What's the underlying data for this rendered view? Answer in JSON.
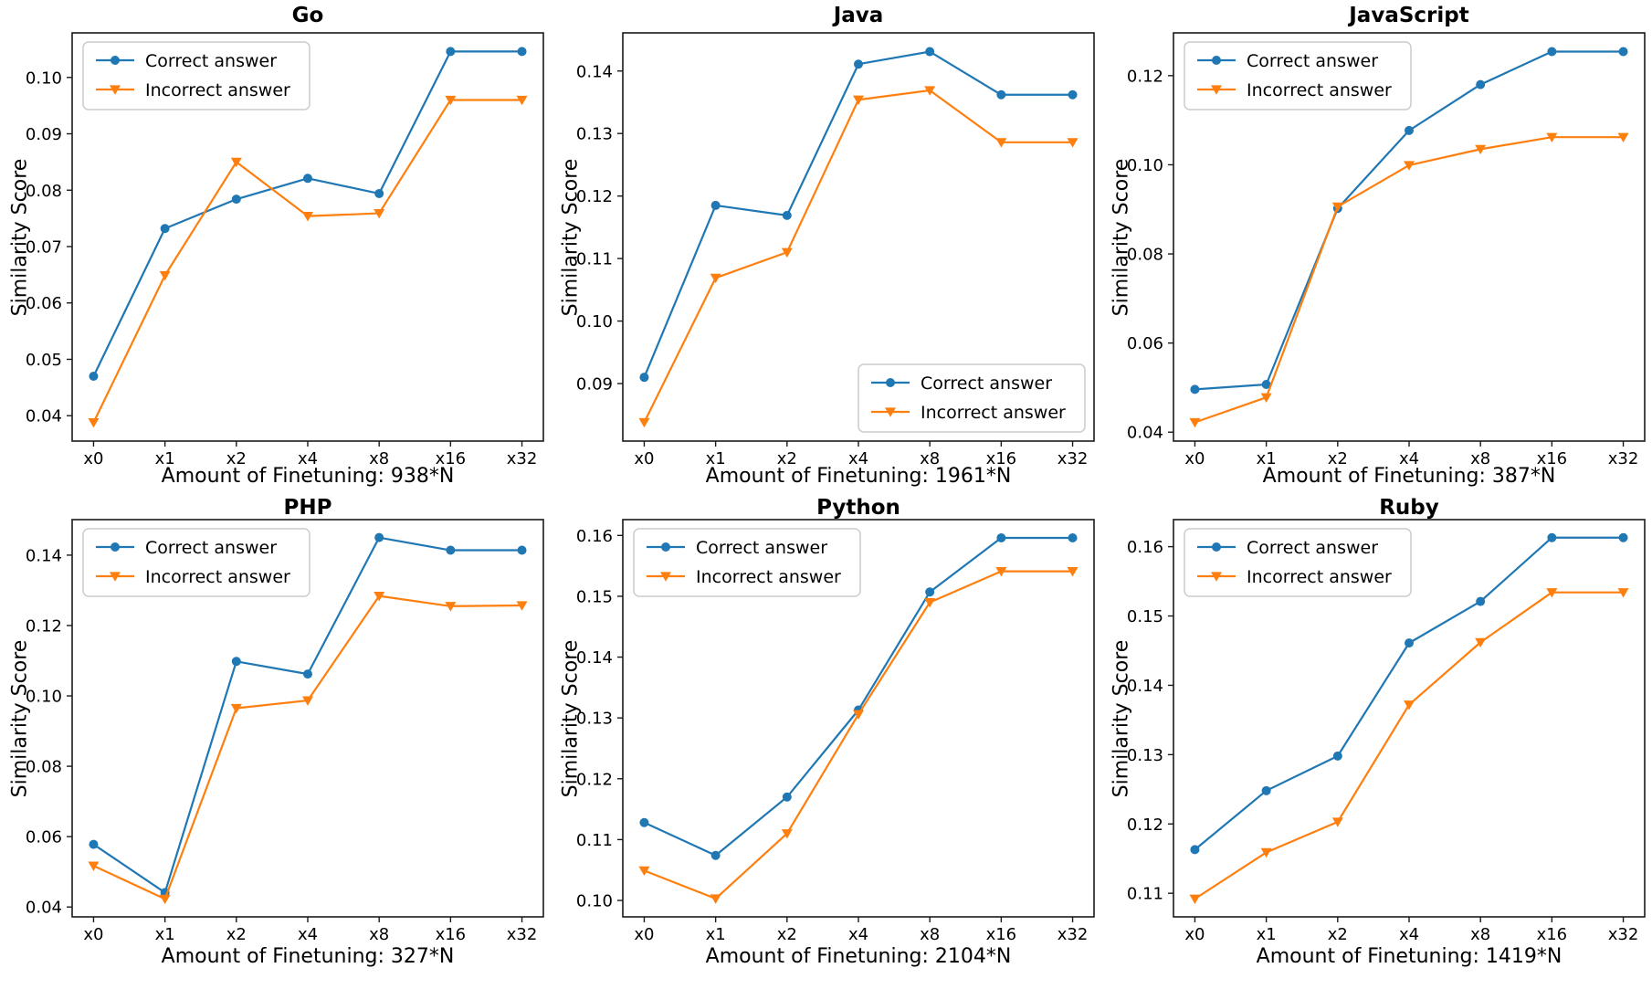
{
  "figure": {
    "background_color": "#ffffff",
    "text_color": "#000000",
    "axis_color": "#1a1a1a",
    "correct_color": "#1f77b4",
    "incorrect_color": "#ff7f0e",
    "legend_labels": [
      "Correct answer",
      "Incorrect answer"
    ]
  },
  "chart_data": [
    {
      "type": "line",
      "title": "Go",
      "xlabel": "Amount of Finetuning: 938*N",
      "ylabel": "Similarity Score",
      "x_categories": [
        "x0",
        "x1",
        "x2",
        "x4",
        "x8",
        "x16",
        "x32"
      ],
      "y_ticks": [
        0.04,
        0.05,
        0.06,
        0.07,
        0.08,
        0.09,
        0.1
      ],
      "ylim": [
        0.0355,
        0.1079
      ],
      "grid": false,
      "legend_position": "upper-left",
      "series": [
        {
          "name": "Correct answer",
          "marker": "circle",
          "color": "#1f77b4",
          "values": [
            0.047,
            0.0732,
            0.0784,
            0.0821,
            0.0794,
            0.1046,
            0.1046
          ]
        },
        {
          "name": "Incorrect answer",
          "marker": "triangle-down",
          "color": "#ff7f0e",
          "values": [
            0.0388,
            0.0649,
            0.085,
            0.0754,
            0.0759,
            0.096,
            0.096
          ]
        }
      ]
    },
    {
      "type": "line",
      "title": "Java",
      "xlabel": "Amount of Finetuning: 1961*N",
      "ylabel": "Similarity Score",
      "x_categories": [
        "x0",
        "x1",
        "x2",
        "x4",
        "x8",
        "x16",
        "x32"
      ],
      "y_ticks": [
        0.09,
        0.1,
        0.11,
        0.12,
        0.13,
        0.14
      ],
      "ylim": [
        0.0808,
        0.1461
      ],
      "grid": false,
      "legend_position": "lower-right",
      "series": [
        {
          "name": "Correct answer",
          "marker": "circle",
          "color": "#1f77b4",
          "values": [
            0.091,
            0.1185,
            0.1169,
            0.1411,
            0.1431,
            0.1362,
            0.1362
          ]
        },
        {
          "name": "Incorrect answer",
          "marker": "triangle-down",
          "color": "#ff7f0e",
          "values": [
            0.0838,
            0.1069,
            0.111,
            0.1354,
            0.1369,
            0.1286,
            0.1286
          ]
        }
      ]
    },
    {
      "type": "line",
      "title": "JavaScript",
      "xlabel": "Amount of Finetuning: 387*N",
      "ylabel": "Similarity Score",
      "x_categories": [
        "x0",
        "x1",
        "x2",
        "x4",
        "x8",
        "x16",
        "x32"
      ],
      "y_ticks": [
        0.04,
        0.06,
        0.08,
        0.1,
        0.12
      ],
      "ylim": [
        0.038,
        0.1296
      ],
      "grid": false,
      "legend_position": "upper-left",
      "series": [
        {
          "name": "Correct answer",
          "marker": "circle",
          "color": "#1f77b4",
          "values": [
            0.0496,
            0.0507,
            0.0902,
            0.1077,
            0.118,
            0.1254,
            0.1254
          ]
        },
        {
          "name": "Incorrect answer",
          "marker": "triangle-down",
          "color": "#ff7f0e",
          "values": [
            0.0422,
            0.0478,
            0.0906,
            0.0999,
            0.1035,
            0.1062,
            0.1062
          ]
        }
      ]
    },
    {
      "type": "line",
      "title": "PHP",
      "xlabel": "Amount of Finetuning: 327*N",
      "ylabel": "Similarity Score",
      "x_categories": [
        "x0",
        "x1",
        "x2",
        "x4",
        "x8",
        "x16",
        "x32"
      ],
      "y_ticks": [
        0.04,
        0.06,
        0.08,
        0.1,
        0.12,
        0.14
      ],
      "ylim": [
        0.0372,
        0.1501
      ],
      "grid": false,
      "legend_position": "upper-left",
      "series": [
        {
          "name": "Correct answer",
          "marker": "circle",
          "color": "#1f77b4",
          "values": [
            0.0578,
            0.0441,
            0.1098,
            0.1062,
            0.145,
            0.1414,
            0.1414
          ]
        },
        {
          "name": "Incorrect answer",
          "marker": "triangle-down",
          "color": "#ff7f0e",
          "values": [
            0.0517,
            0.0423,
            0.0965,
            0.0987,
            0.1284,
            0.1255,
            0.1257
          ]
        }
      ]
    },
    {
      "type": "line",
      "title": "Python",
      "xlabel": "Amount of Finetuning: 2104*N",
      "ylabel": "Similarity Score",
      "x_categories": [
        "x0",
        "x1",
        "x2",
        "x4",
        "x8",
        "x16",
        "x32"
      ],
      "y_ticks": [
        0.1,
        0.11,
        0.12,
        0.13,
        0.14,
        0.15,
        0.16
      ],
      "ylim": [
        0.0973,
        0.1626
      ],
      "grid": false,
      "legend_position": "upper-left",
      "series": [
        {
          "name": "Correct answer",
          "marker": "circle",
          "color": "#1f77b4",
          "values": [
            0.1128,
            0.1074,
            0.117,
            0.1313,
            0.1507,
            0.1596,
            0.1596
          ]
        },
        {
          "name": "Incorrect answer",
          "marker": "triangle-down",
          "color": "#ff7f0e",
          "values": [
            0.1049,
            0.1003,
            0.111,
            0.1306,
            0.149,
            0.1541,
            0.1541
          ]
        }
      ]
    },
    {
      "type": "line",
      "title": "Ruby",
      "xlabel": "Amount of Finetuning: 1419*N",
      "ylabel": "Similarity Score",
      "x_categories": [
        "x0",
        "x1",
        "x2",
        "x4",
        "x8",
        "x16",
        "x32"
      ],
      "y_ticks": [
        0.11,
        0.12,
        0.13,
        0.14,
        0.15,
        0.16
      ],
      "ylim": [
        0.1066,
        0.1639
      ],
      "grid": false,
      "legend_position": "upper-left",
      "series": [
        {
          "name": "Correct answer",
          "marker": "circle",
          "color": "#1f77b4",
          "values": [
            0.1163,
            0.1248,
            0.1298,
            0.1461,
            0.1521,
            0.1613,
            0.1613
          ]
        },
        {
          "name": "Incorrect answer",
          "marker": "triangle-down",
          "color": "#ff7f0e",
          "values": [
            0.1092,
            0.1159,
            0.1203,
            0.1372,
            0.1462,
            0.1534,
            0.1534
          ]
        }
      ]
    }
  ]
}
